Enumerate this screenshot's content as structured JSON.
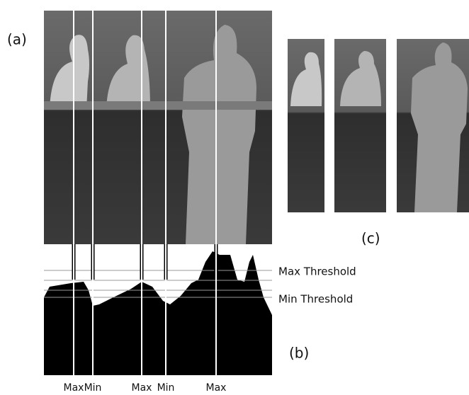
{
  "panels": {
    "a": "(a)",
    "b": "(b)",
    "c": "(c)"
  },
  "thresholds": [
    "Max Threshold",
    "Min Threshold"
  ],
  "markers": [
    "Max",
    "Min",
    "Max",
    "Min",
    "Max"
  ]
}
